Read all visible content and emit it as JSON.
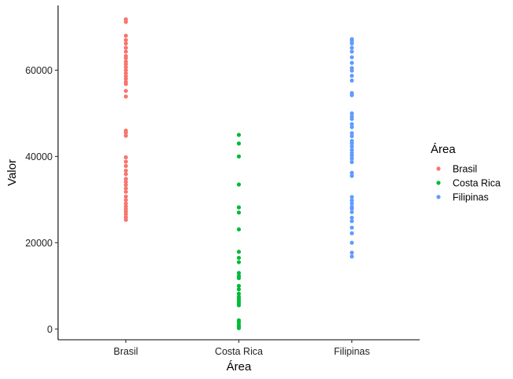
{
  "chart_data": {
    "type": "scatter",
    "title": "",
    "xlabel": "Área",
    "ylabel": "Valor",
    "ylim": [
      -2500,
      75000
    ],
    "yticks": [
      0,
      20000,
      40000,
      60000
    ],
    "ytick_labels": [
      "0",
      "20000",
      "40000",
      "60000"
    ],
    "categories": [
      "Brasil",
      "Costa Rica",
      "Filipinas"
    ],
    "grid": false,
    "legend": {
      "title": "Área",
      "placement": "right",
      "entries": [
        "Brasil",
        "Costa Rica",
        "Filipinas"
      ]
    },
    "series": [
      {
        "name": "Brasil",
        "color": "#F8766D",
        "category": "Brasil",
        "values": [
          71800,
          71200,
          68000,
          67000,
          66200,
          65200,
          64300,
          63300,
          62800,
          62000,
          61400,
          60700,
          60000,
          59300,
          58600,
          58000,
          57300,
          56800,
          55200,
          53900,
          46000,
          45500,
          44800,
          39800,
          38800,
          37800,
          36700,
          35900,
          34800,
          34100,
          33400,
          32600,
          31800,
          30700,
          29900,
          29100,
          28400,
          27800,
          27200,
          26600,
          25900,
          25300
        ]
      },
      {
        "name": "Costa Rica",
        "color": "#00BA38",
        "category": "Costa Rica",
        "values": [
          45000,
          43000,
          40000,
          33500,
          28200,
          27000,
          23100,
          17900,
          16500,
          15500,
          13000,
          12300,
          11800,
          10000,
          9200,
          8200,
          7500,
          7000,
          6500,
          6000,
          5500,
          2000,
          1500,
          900,
          500,
          200
        ]
      },
      {
        "name": "Filipinas",
        "color": "#619CFF",
        "category": "Filipinas",
        "values": [
          67200,
          66800,
          66200,
          65200,
          64300,
          63000,
          61700,
          60500,
          59900,
          58700,
          57600,
          54700,
          54200,
          50000,
          49300,
          48700,
          47500,
          46800,
          45400,
          44700,
          43600,
          43000,
          42300,
          41500,
          40800,
          40200,
          39500,
          38700,
          36200,
          35500,
          30600,
          29800,
          29100,
          28300,
          27900,
          27100,
          25800,
          25000,
          23500,
          22200,
          20000,
          17700,
          16800
        ]
      }
    ]
  }
}
